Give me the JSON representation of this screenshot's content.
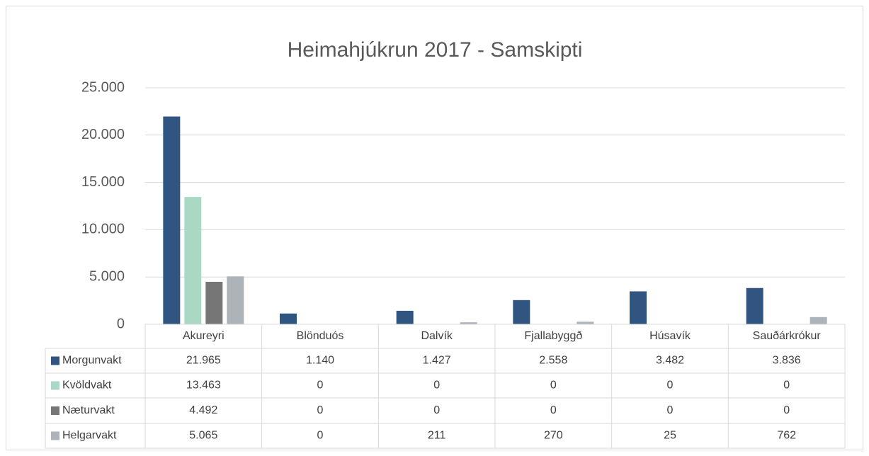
{
  "chart_data": {
    "type": "bar",
    "title": "Heimahjúkrun 2017 - Samskipti",
    "categories": [
      "Akureyri",
      "Blönduós",
      "Dalvík",
      "Fjallabyggð",
      "Húsavík",
      "Sauðárkrókur"
    ],
    "series": [
      {
        "name": "Morgunvakt",
        "color": "#2f5580",
        "values": [
          21965,
          1140,
          1427,
          2558,
          3482,
          3836
        ],
        "value_labels": [
          "21.965",
          "1.140",
          "1.427",
          "2.558",
          "3.482",
          "3.836"
        ]
      },
      {
        "name": "Kvöldvakt",
        "color": "#a9d9c5",
        "values": [
          13463,
          0,
          0,
          0,
          0,
          0
        ],
        "value_labels": [
          "13.463",
          "0",
          "0",
          "0",
          "0",
          "0"
        ]
      },
      {
        "name": "Næturvakt",
        "color": "#767676",
        "values": [
          4492,
          0,
          0,
          0,
          0,
          0
        ],
        "value_labels": [
          "4.492",
          "0",
          "0",
          "0",
          "0",
          "0"
        ]
      },
      {
        "name": "Helgarvakt",
        "color": "#adb3b9",
        "values": [
          5065,
          0,
          211,
          270,
          25,
          762
        ],
        "value_labels": [
          "5.065",
          "0",
          "211",
          "270",
          "25",
          "762"
        ]
      }
    ],
    "ylim": [
      0,
      25000
    ],
    "yticks": [
      0,
      {
        "value": 5000,
        "label": "5.000"
      },
      {
        "value": 10000,
        "label": "10.000"
      },
      {
        "value": 15000,
        "label": "15.000"
      },
      {
        "value": 20000,
        "label": "20.000"
      },
      {
        "value": 25000,
        "label": "25.000"
      }
    ],
    "grid": true
  }
}
